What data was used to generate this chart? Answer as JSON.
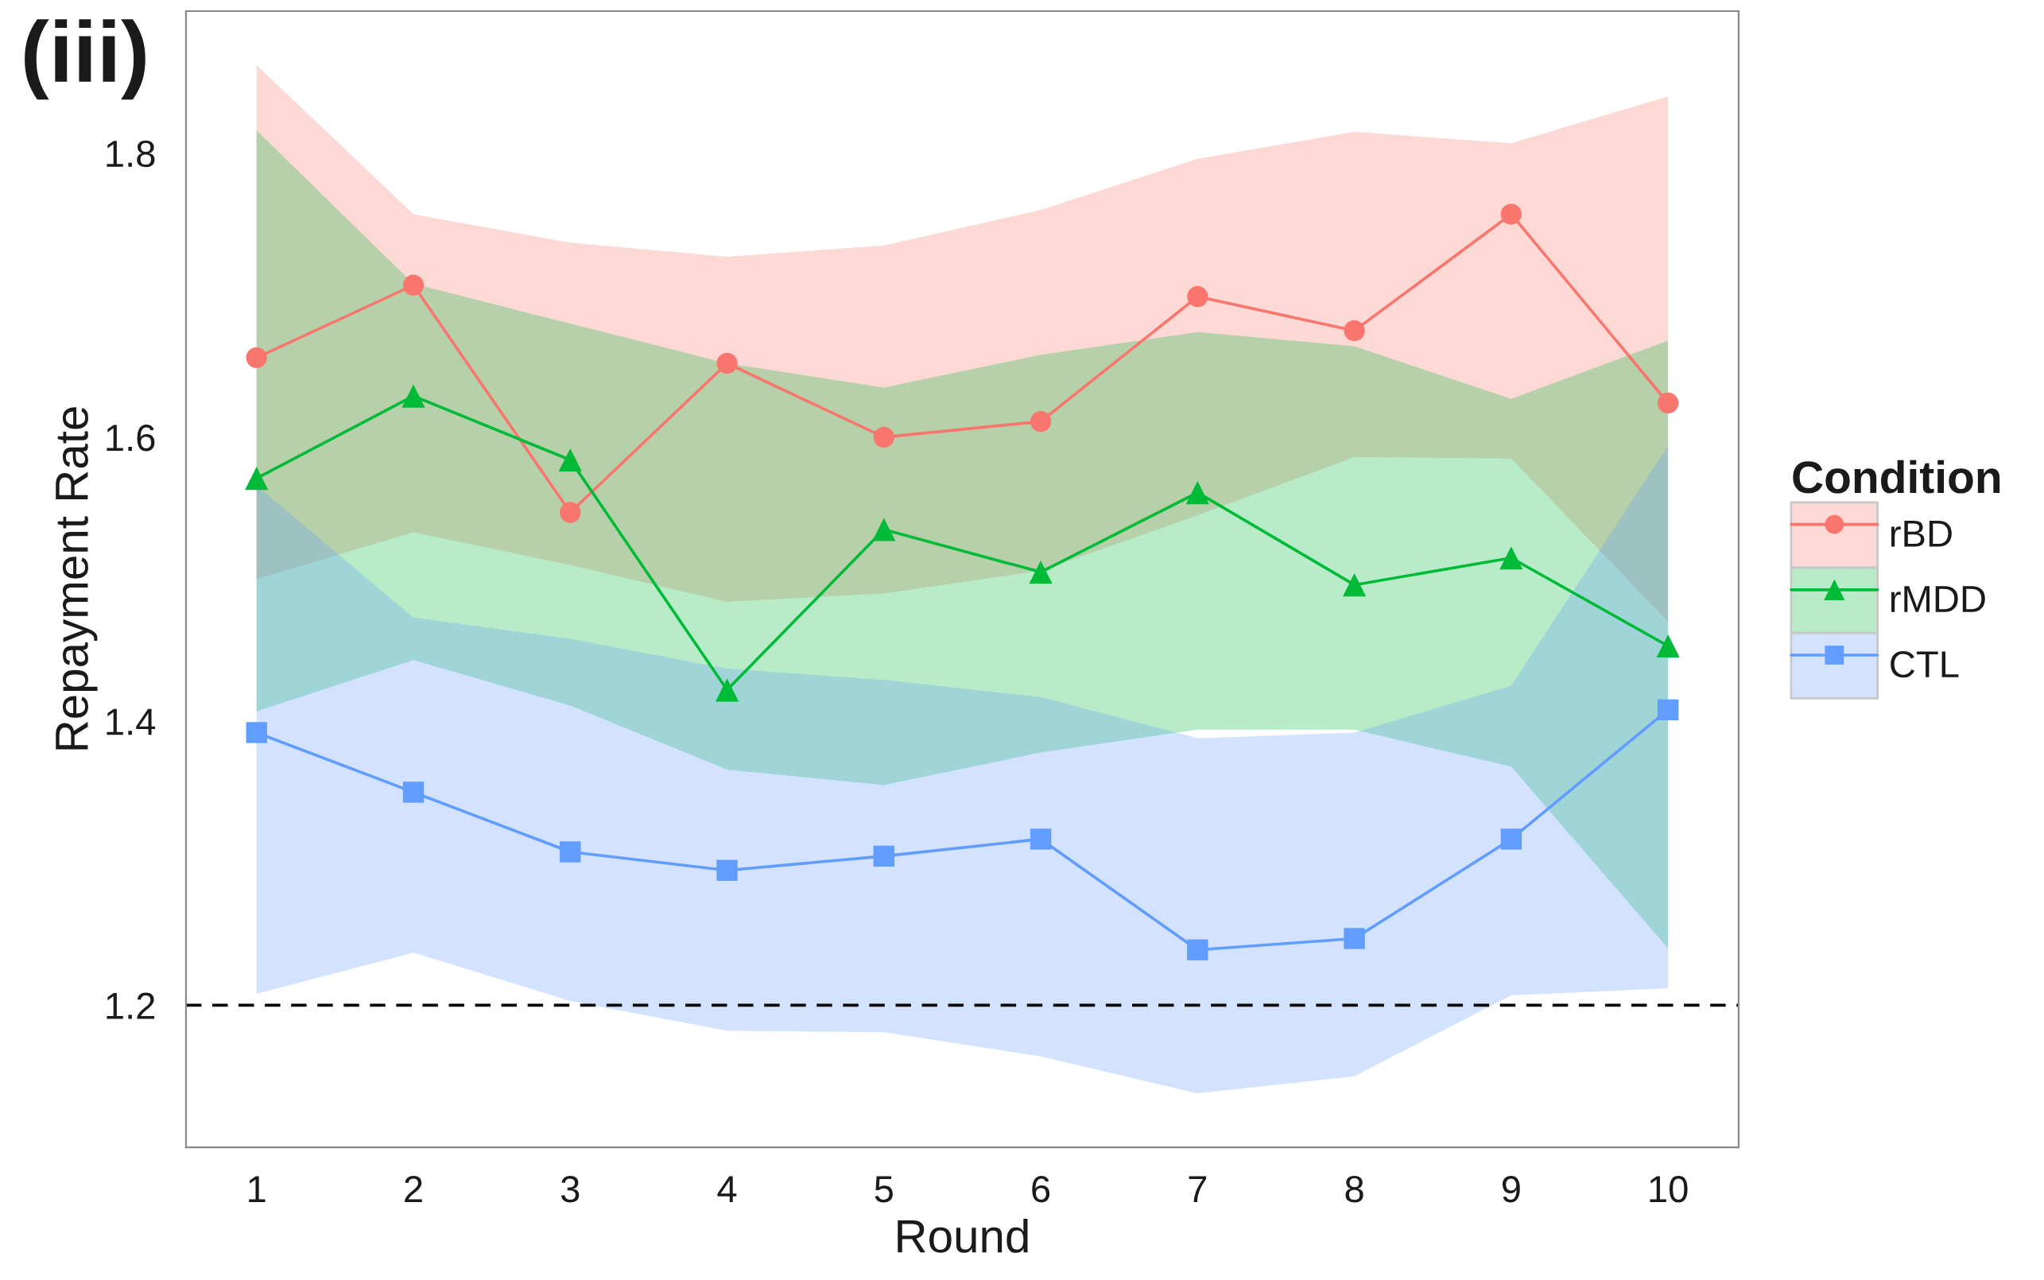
{
  "chart_data": {
    "type": "line",
    "xlabel": "Round",
    "ylabel": "Repayment Rate",
    "legend_title": "Condition",
    "annotations": [
      "(iii)"
    ],
    "x": [
      1,
      2,
      3,
      4,
      5,
      6,
      7,
      8,
      9,
      10
    ],
    "xlim": [
      0.55,
      10.45
    ],
    "xticks": [
      1,
      2,
      3,
      4,
      5,
      6,
      7,
      8,
      9,
      10
    ],
    "ylim": [
      1.1,
      1.9
    ],
    "yticks": [
      1.2,
      1.4,
      1.6,
      1.8
    ],
    "grid": false,
    "legend": "right",
    "line_style": "solid",
    "ref_lines": [
      {
        "axis": "y",
        "value": 1.2,
        "line_style": "dashed",
        "color": "#000000"
      }
    ],
    "series": [
      {
        "name": "rBD",
        "color": "#f8766d",
        "marker": "circle",
        "values": [
          1.656,
          1.707,
          1.547,
          1.652,
          1.6,
          1.611,
          1.699,
          1.675,
          1.757,
          1.624
        ],
        "lower": [
          1.5,
          1.533,
          1.51,
          1.484,
          1.49,
          1.506,
          1.545,
          1.586,
          1.585,
          1.47
        ],
        "upper": [
          1.862,
          1.757,
          1.737,
          1.727,
          1.735,
          1.76,
          1.796,
          1.815,
          1.807,
          1.84
        ]
      },
      {
        "name": "rMDD",
        "color": "#00ba38",
        "marker": "triangle",
        "values": [
          1.571,
          1.629,
          1.584,
          1.422,
          1.535,
          1.505,
          1.561,
          1.496,
          1.515,
          1.453
        ],
        "lower": [
          1.407,
          1.443,
          1.411,
          1.366,
          1.355,
          1.378,
          1.394,
          1.394,
          1.368,
          1.24
        ],
        "upper": [
          1.816,
          1.708,
          1.68,
          1.652,
          1.635,
          1.658,
          1.674,
          1.664,
          1.627,
          1.668
        ]
      },
      {
        "name": "CTL",
        "color": "#619cff",
        "marker": "square",
        "values": [
          1.392,
          1.35,
          1.308,
          1.295,
          1.305,
          1.317,
          1.239,
          1.247,
          1.317,
          1.408
        ],
        "lower": [
          1.208,
          1.237,
          1.203,
          1.182,
          1.181,
          1.164,
          1.138,
          1.15,
          1.207,
          1.212
        ],
        "upper": [
          1.566,
          1.473,
          1.458,
          1.437,
          1.429,
          1.417,
          1.388,
          1.392,
          1.425,
          1.594
        ]
      }
    ]
  }
}
